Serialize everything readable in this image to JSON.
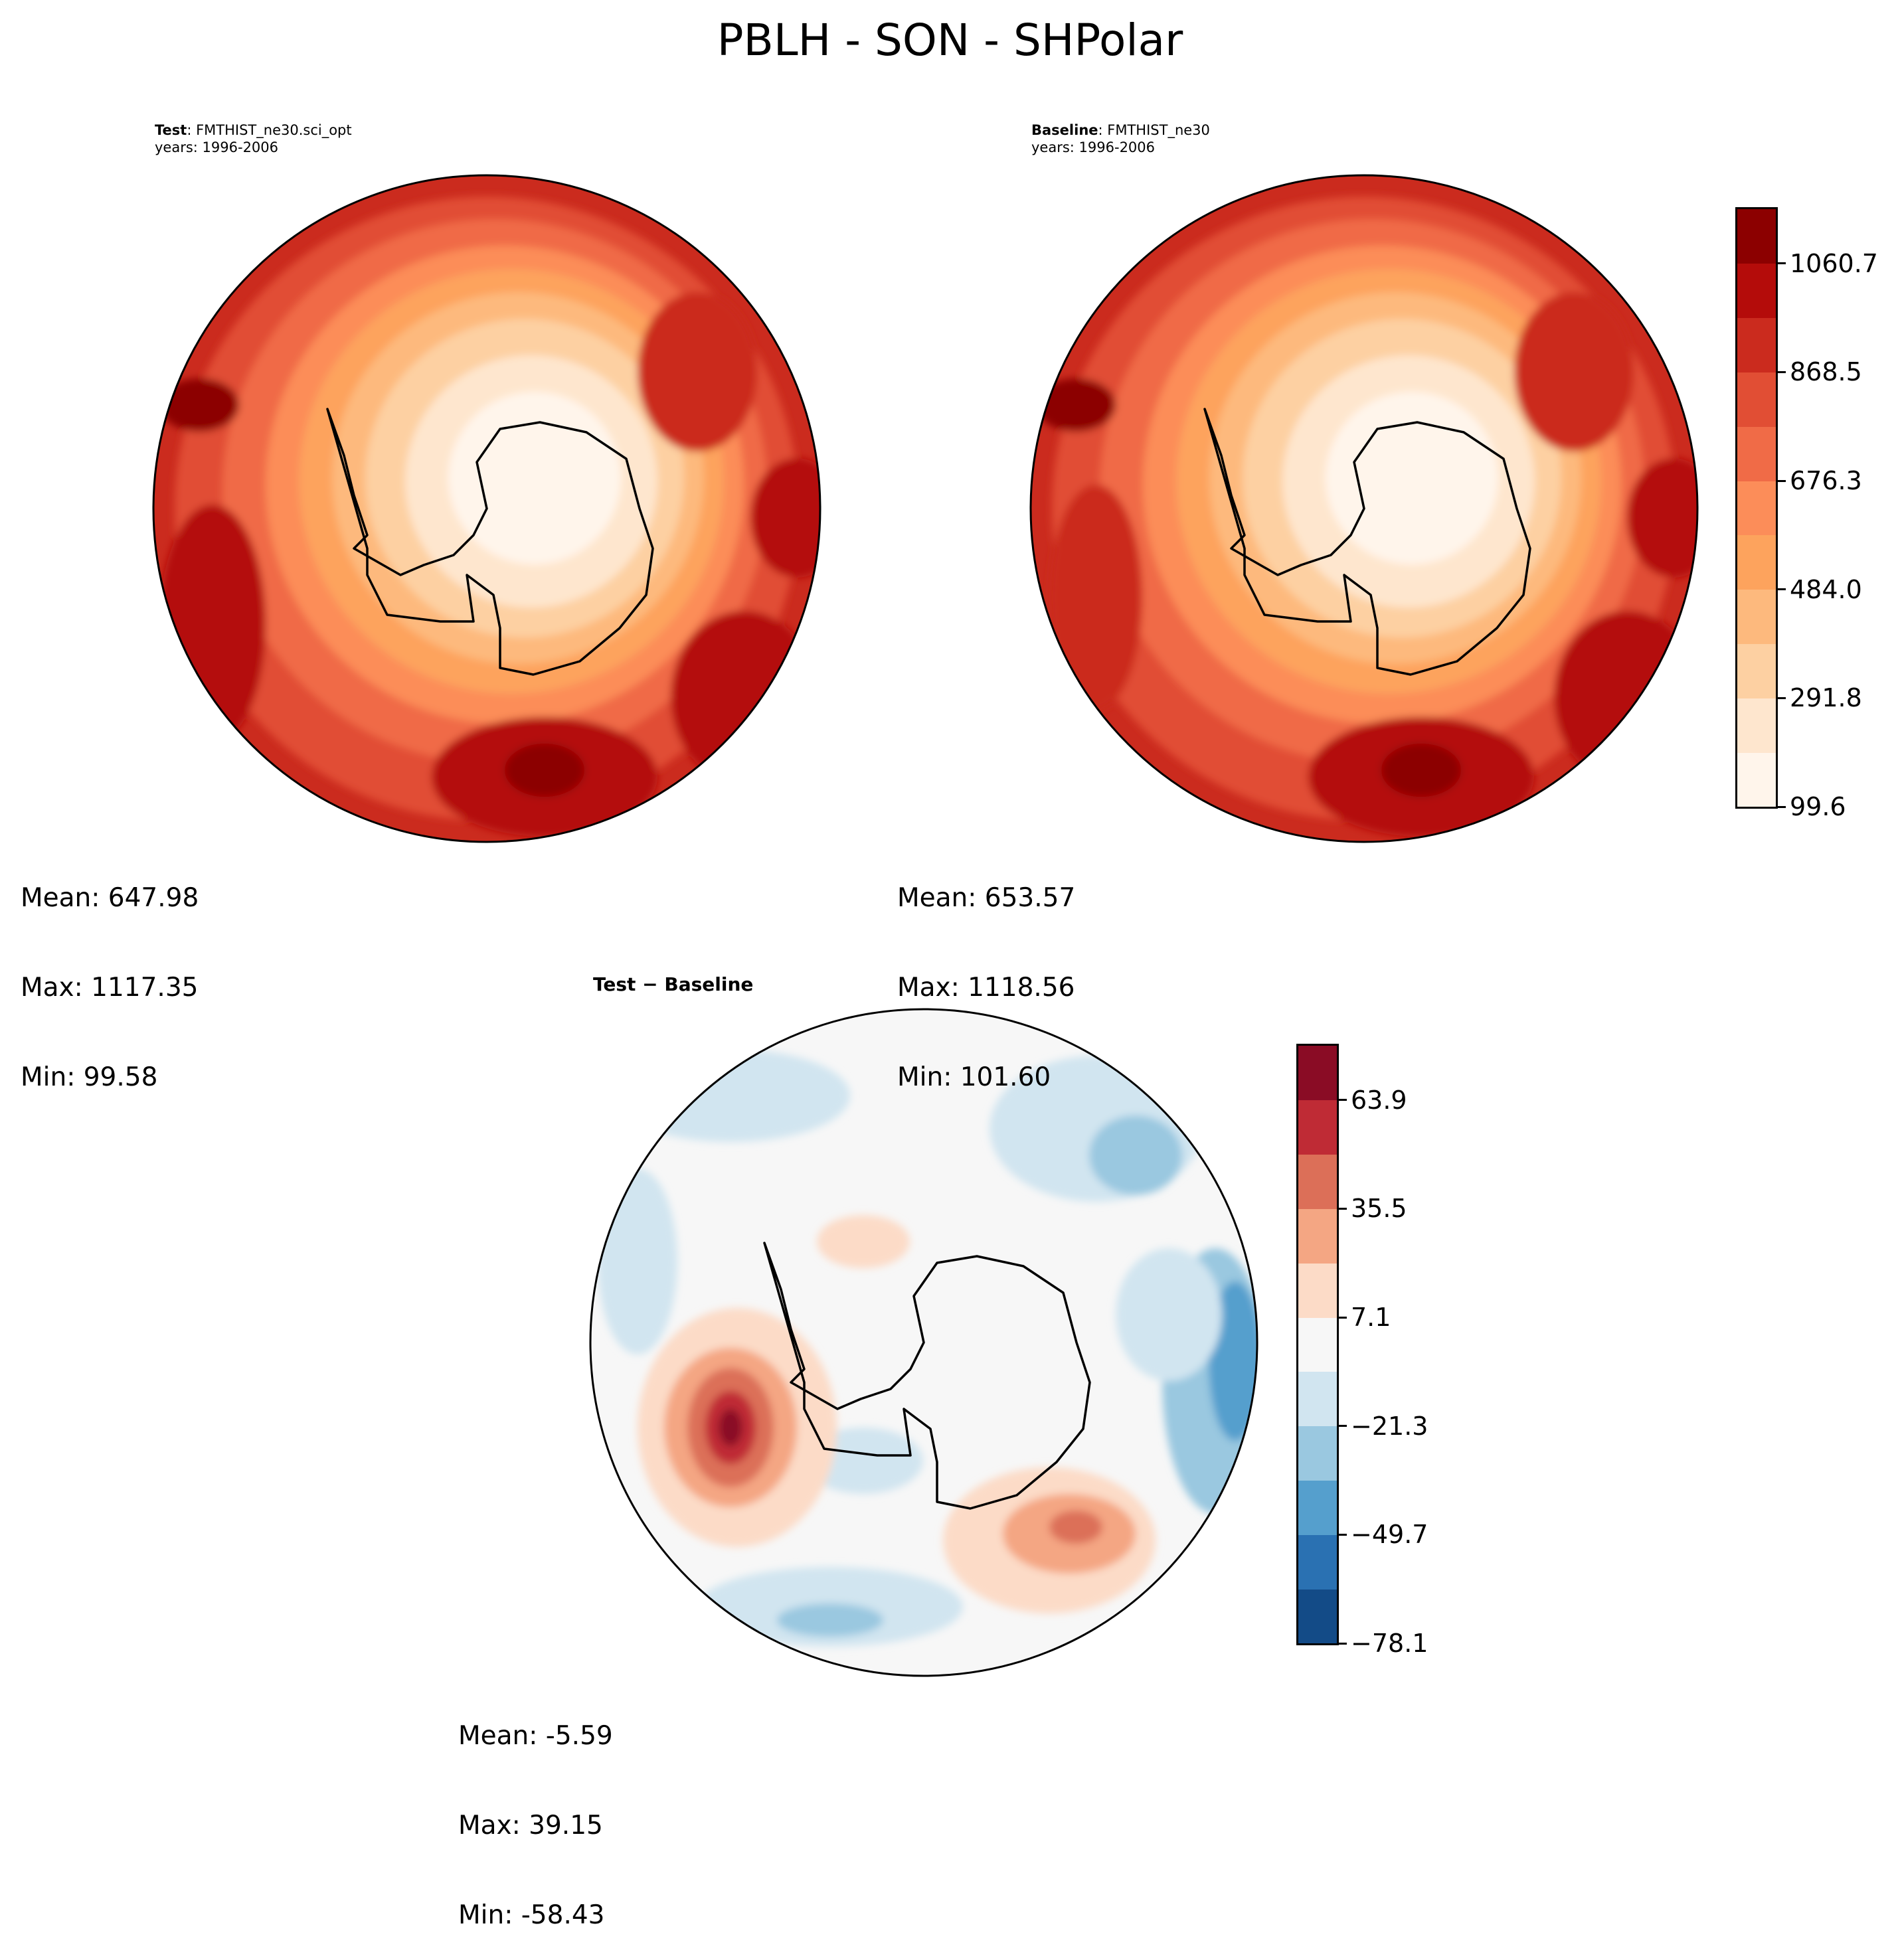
{
  "figure": {
    "title": "PBLH - SON - SHPolar"
  },
  "panels": {
    "test": {
      "label_bold": "Test",
      "label_sep": ": ",
      "label_text": "FMTHIST_ne30.sci_opt",
      "years": "years: 1996-2006",
      "mean": "Mean: 647.98",
      "max": "Max: 1117.35",
      "min": "Min: 99.58"
    },
    "baseline": {
      "label_bold": "Baseline",
      "label_sep": ": ",
      "label_text": "FMTHIST_ne30",
      "years": "years: 1996-2006",
      "mean": "Mean: 653.57",
      "max": "Max: 1118.56",
      "min": "Min: 101.60"
    },
    "diff": {
      "label_bold": "Test − Baseline",
      "mean": "Mean: -5.59",
      "max": "Max: 39.15",
      "min": "Min: -58.43"
    }
  },
  "chart_data": [
    {
      "type": "heatmap",
      "projection": "south-polar-stereographic",
      "title": "Test: FMTHIST_ne30.sci_opt",
      "subtitle": "years: 1996-2006",
      "stats": {
        "mean": 647.98,
        "max": 1117.35,
        "min": 99.58
      },
      "colorbar": {
        "ticks": [
          99.6,
          291.8,
          484.0,
          676.3,
          868.5,
          1060.7
        ],
        "levels": [
          99.6,
          195.7,
          291.8,
          387.9,
          484.0,
          580.1,
          676.3,
          772.4,
          868.5,
          964.6,
          1060.7,
          1117.35
        ],
        "colors": [
          "#fff5eb",
          "#fee6ce",
          "#fdd0a2",
          "#fdb97d",
          "#fda35d",
          "#fc8d59",
          "#f06b47",
          "#e14e34",
          "#cb2b1e",
          "#b40c0a",
          "#8c0000"
        ]
      }
    },
    {
      "type": "heatmap",
      "projection": "south-polar-stereographic",
      "title": "Baseline: FMTHIST_ne30",
      "subtitle": "years: 1996-2006",
      "stats": {
        "mean": 653.57,
        "max": 1118.56,
        "min": 101.6
      },
      "colorbar": {
        "ticks": [
          99.6,
          291.8,
          484.0,
          676.3,
          868.5,
          1060.7
        ]
      }
    },
    {
      "type": "heatmap",
      "projection": "south-polar-stereographic",
      "title": "Test − Baseline",
      "stats": {
        "mean": -5.59,
        "max": 39.15,
        "min": -58.43
      },
      "colorbar": {
        "ticks": [
          -78.1,
          -49.7,
          -21.3,
          7.1,
          35.5,
          63.9
        ],
        "tick_labels": [
          "−78.1",
          "−49.7",
          "−21.3",
          "7.1",
          "35.5",
          "63.9"
        ],
        "levels": [
          -78.1,
          -63.9,
          -49.7,
          -35.5,
          -21.3,
          -7.1,
          7.1,
          21.3,
          35.5,
          49.7,
          63.9,
          78.1
        ],
        "colors": [
          "#134b87",
          "#2a71b2",
          "#559fcd",
          "#9ac8e0",
          "#d1e5f0",
          "#f7f7f7",
          "#fcdbc7",
          "#f4a683",
          "#dc6f58",
          "#bf2b35",
          "#8a0c25"
        ]
      }
    }
  ]
}
